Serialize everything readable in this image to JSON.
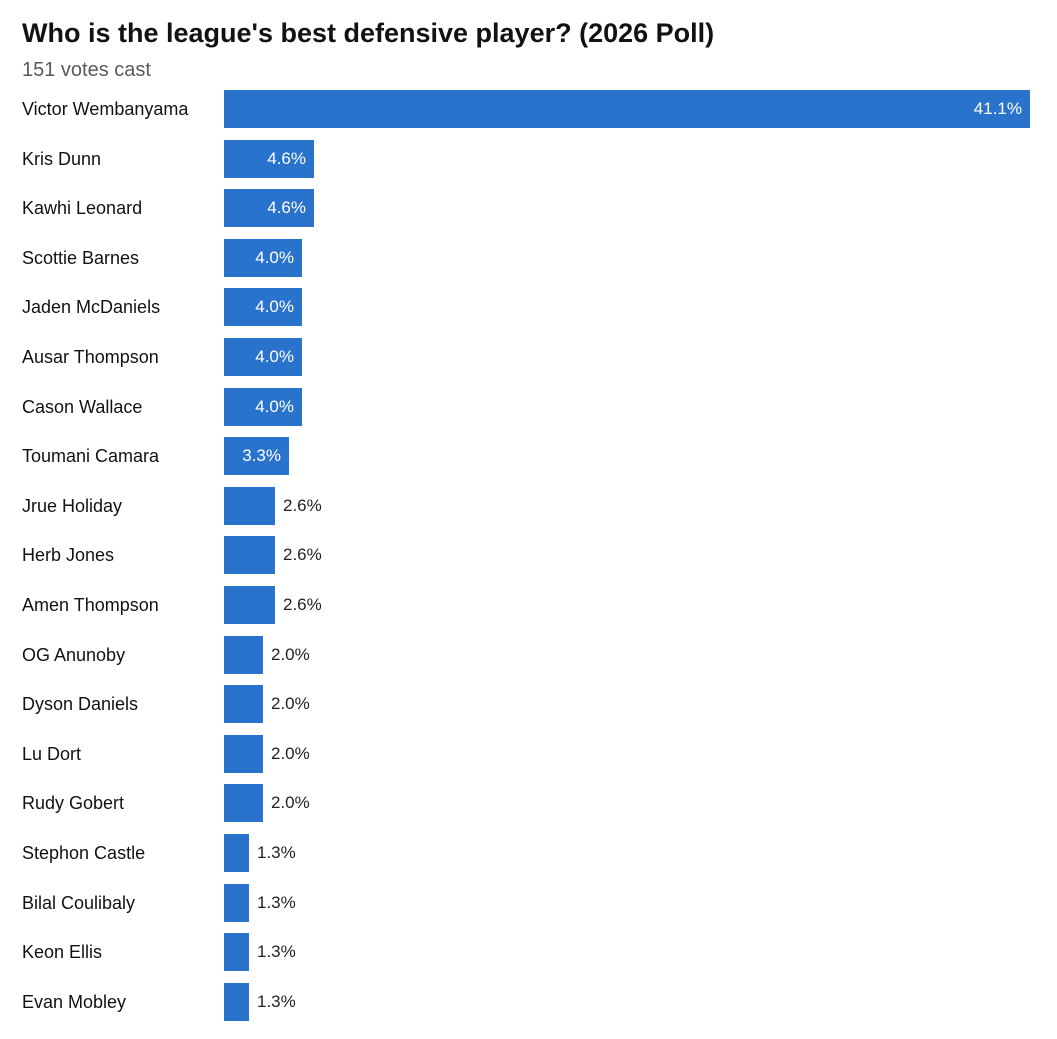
{
  "chart_data": {
    "type": "bar",
    "orientation": "horizontal",
    "title": "Who is the league's best defensive player? (2026 Poll)",
    "subtitle": "151 votes cast",
    "xlabel": "",
    "ylabel": "",
    "xlim": [
      0,
      41.1
    ],
    "grid": false,
    "bar_color": "#2a73cc",
    "categories": [
      "Victor Wembanyama",
      "Kris Dunn",
      "Kawhi Leonard",
      "Scottie Barnes",
      "Jaden McDaniels",
      "Ausar Thompson",
      "Cason Wallace",
      "Toumani Camara",
      "Jrue Holiday",
      "Herb Jones",
      "Amen Thompson",
      "OG Anunoby",
      "Dyson Daniels",
      "Lu Dort",
      "Rudy Gobert",
      "Stephon Castle",
      "Bilal Coulibaly",
      "Keon Ellis",
      "Evan Mobley"
    ],
    "values": [
      41.1,
      4.6,
      4.6,
      4.0,
      4.0,
      4.0,
      4.0,
      3.3,
      2.6,
      2.6,
      2.6,
      2.0,
      2.0,
      2.0,
      2.0,
      1.3,
      1.3,
      1.3,
      1.3
    ],
    "value_labels": [
      "41.1%",
      "4.6%",
      "4.6%",
      "4.0%",
      "4.0%",
      "4.0%",
      "4.0%",
      "3.3%",
      "2.6%",
      "2.6%",
      "2.6%",
      "2.0%",
      "2.0%",
      "2.0%",
      "2.0%",
      "1.3%",
      "1.3%",
      "1.3%",
      "1.3%"
    ]
  }
}
